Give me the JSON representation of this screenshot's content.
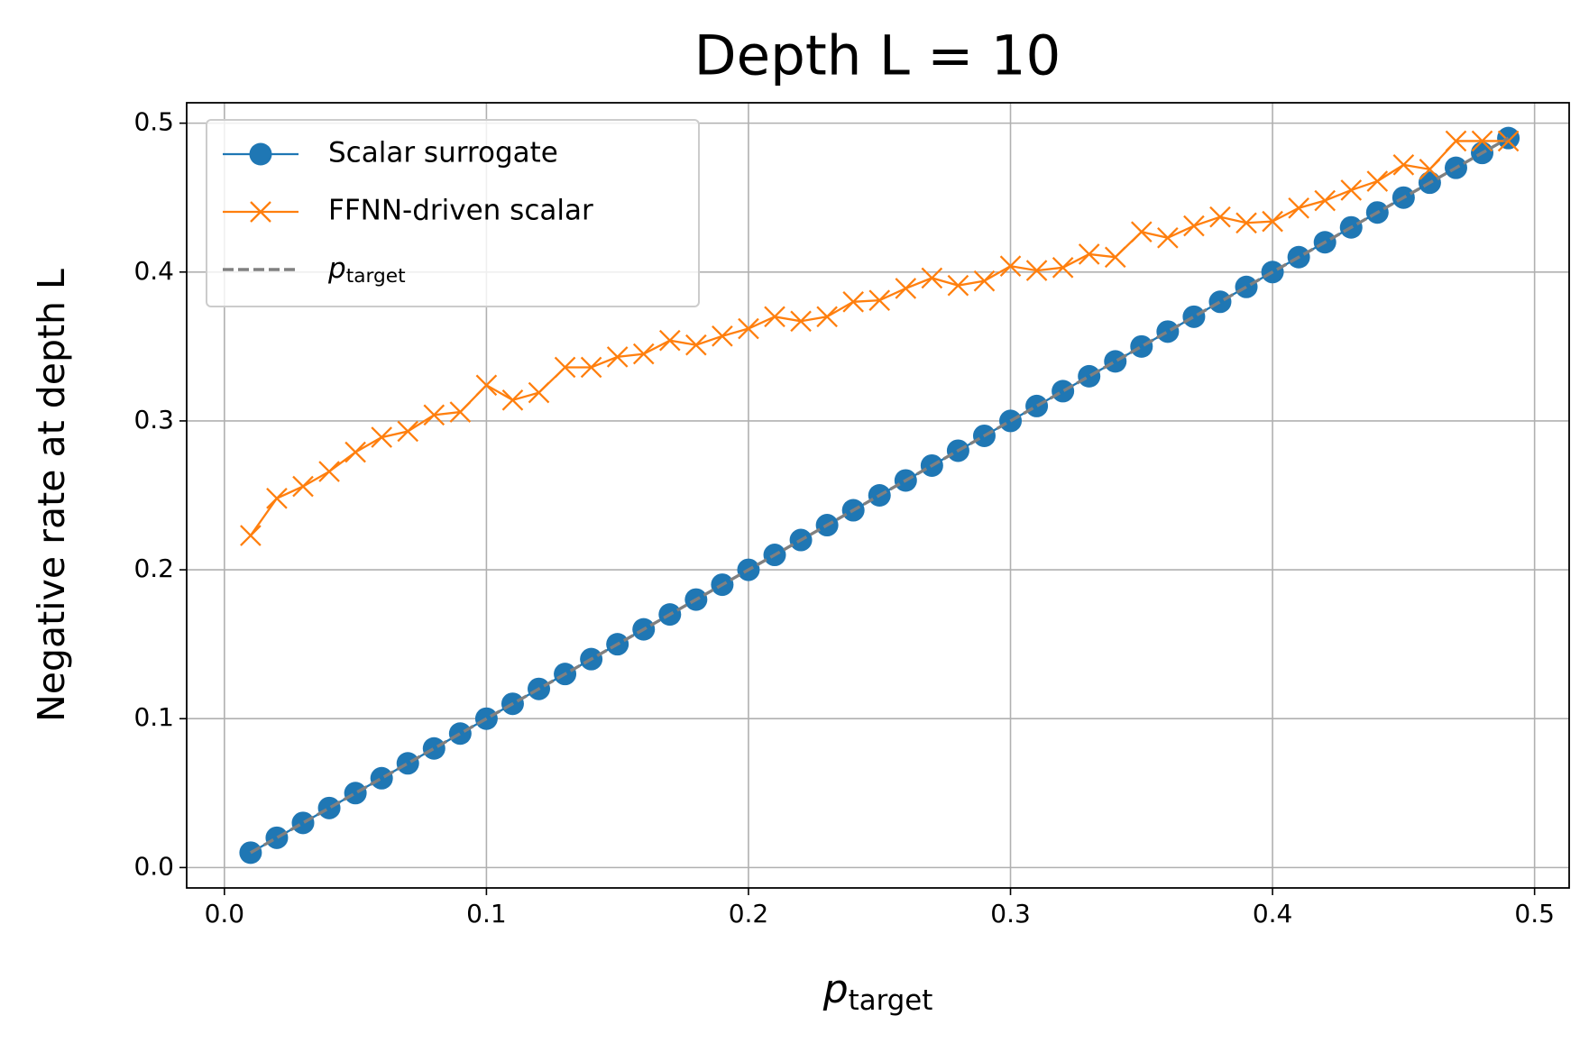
{
  "chart_data": {
    "type": "line",
    "title": "Depth L = 10",
    "x_label": {
      "symbol": "p",
      "subscript": "target"
    },
    "y_label": "Negative rate at depth L",
    "x": [
      0.01,
      0.02,
      0.03,
      0.04,
      0.05,
      0.06,
      0.07,
      0.08,
      0.09,
      0.1,
      0.11,
      0.12,
      0.13,
      0.14,
      0.15,
      0.16,
      0.17,
      0.18,
      0.19,
      0.2,
      0.21,
      0.22,
      0.23,
      0.24,
      0.25,
      0.26,
      0.27,
      0.28,
      0.29,
      0.3,
      0.31,
      0.32,
      0.33,
      0.34,
      0.35,
      0.36,
      0.37,
      0.38,
      0.39,
      0.4,
      0.41,
      0.42,
      0.43,
      0.44,
      0.45,
      0.46,
      0.47,
      0.48,
      0.49
    ],
    "series": [
      {
        "name": "Scalar surrogate",
        "color": "#1f77b4",
        "marker": "circle",
        "values": [
          0.01,
          0.02,
          0.03,
          0.04,
          0.05,
          0.06,
          0.07,
          0.08,
          0.09,
          0.1,
          0.11,
          0.12,
          0.13,
          0.14,
          0.15,
          0.16,
          0.17,
          0.18,
          0.19,
          0.2,
          0.21,
          0.22,
          0.23,
          0.24,
          0.25,
          0.26,
          0.27,
          0.28,
          0.29,
          0.3,
          0.31,
          0.32,
          0.33,
          0.34,
          0.35,
          0.36,
          0.37,
          0.38,
          0.39,
          0.4,
          0.41,
          0.42,
          0.43,
          0.44,
          0.45,
          0.46,
          0.47,
          0.48,
          0.49
        ]
      },
      {
        "name": "FFNN-driven scalar",
        "color": "#ff7f0e",
        "marker": "x",
        "values": [
          0.223,
          0.248,
          0.256,
          0.266,
          0.279,
          0.289,
          0.293,
          0.304,
          0.306,
          0.324,
          0.314,
          0.319,
          0.336,
          0.336,
          0.343,
          0.345,
          0.354,
          0.351,
          0.357,
          0.362,
          0.37,
          0.367,
          0.37,
          0.38,
          0.381,
          0.389,
          0.396,
          0.391,
          0.394,
          0.404,
          0.401,
          0.403,
          0.412,
          0.41,
          0.427,
          0.423,
          0.431,
          0.437,
          0.433,
          0.434,
          0.443,
          0.448,
          0.455,
          0.461,
          0.472,
          0.469,
          0.488,
          0.488,
          0.488
        ]
      },
      {
        "name": {
          "symbol": "p",
          "subscript": "target"
        },
        "color": "#808080",
        "dashed": true,
        "values": [
          0.01,
          0.02,
          0.03,
          0.04,
          0.05,
          0.06,
          0.07,
          0.08,
          0.09,
          0.1,
          0.11,
          0.12,
          0.13,
          0.14,
          0.15,
          0.16,
          0.17,
          0.18,
          0.19,
          0.2,
          0.21,
          0.22,
          0.23,
          0.24,
          0.25,
          0.26,
          0.27,
          0.28,
          0.29,
          0.3,
          0.31,
          0.32,
          0.33,
          0.34,
          0.35,
          0.36,
          0.37,
          0.38,
          0.39,
          0.4,
          0.41,
          0.42,
          0.43,
          0.44,
          0.45,
          0.46,
          0.47,
          0.48,
          0.49
        ]
      }
    ],
    "xlim": [
      -0.0144,
      0.5132
    ],
    "ylim": [
      -0.0137,
      0.5137
    ],
    "xticks": [
      {
        "value": 0,
        "label": "0.0"
      },
      0.1,
      0.2,
      0.3,
      0.4,
      0.5
    ],
    "yticks": [
      {
        "value": 0,
        "label": "0.0"
      },
      0.1,
      0.2,
      0.3,
      0.4,
      0.5
    ],
    "grid": true,
    "legend": "upper left"
  }
}
